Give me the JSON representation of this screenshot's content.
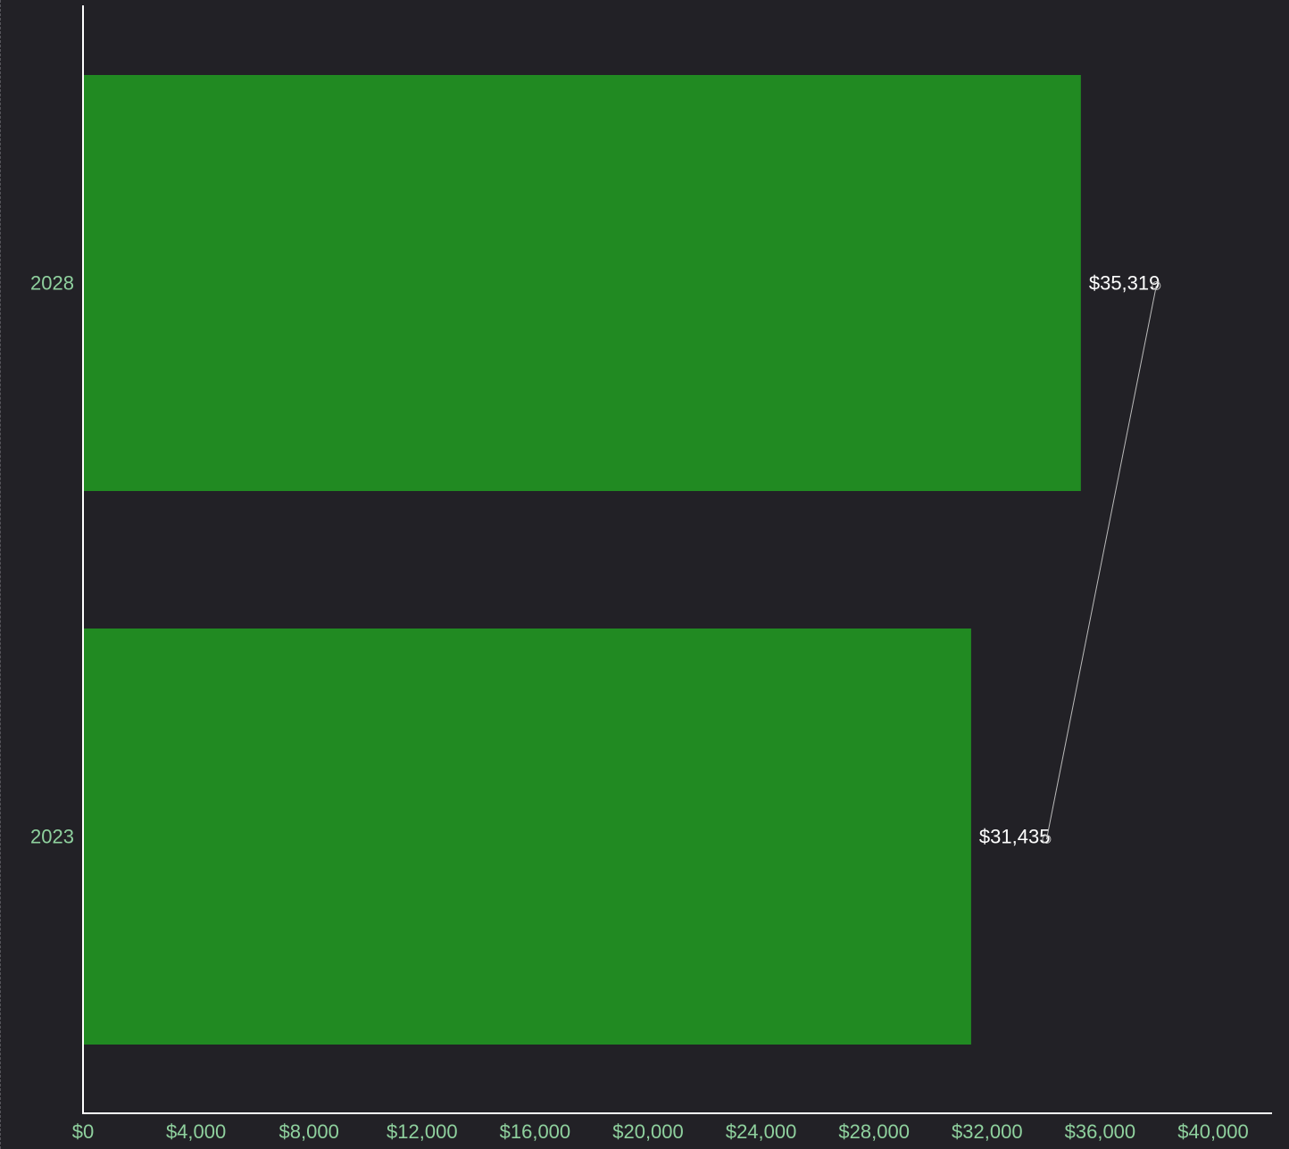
{
  "chart_data": {
    "type": "bar",
    "orientation": "horizontal",
    "categories": [
      "2028",
      "2023"
    ],
    "values": [
      35319,
      31435
    ],
    "value_labels": [
      "$35,319",
      "$31,435"
    ],
    "xlim": [
      0,
      42000
    ],
    "xticks": [
      0,
      4000,
      8000,
      12000,
      16000,
      20000,
      24000,
      28000,
      32000,
      36000,
      40000
    ],
    "xtick_labels": [
      "$0",
      "$4,000",
      "$8,000",
      "$12,000",
      "$16,000",
      "$20,000",
      "$24,000",
      "$28,000",
      "$32,000",
      "$36,000",
      "$40,000"
    ],
    "title": "",
    "xlabel": "",
    "ylabel": "",
    "grid": false,
    "legend": "none",
    "colors": {
      "background": "#222126",
      "bar": "#218a22",
      "tick_label": "#8fd19e",
      "axis": "#ffffff",
      "data_label": "#ffffff",
      "leader_line": "#bbbbbb"
    }
  }
}
